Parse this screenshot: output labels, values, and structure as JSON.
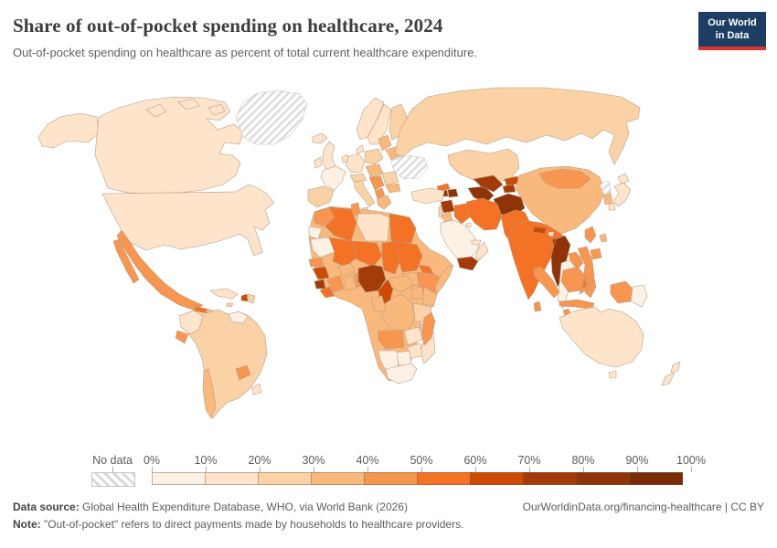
{
  "header": {
    "title": "Share of out-of-pocket spending on healthcare, 2024",
    "subtitle": "Out-of-pocket spending on healthcare as percent of total current healthcare expenditure.",
    "logo": {
      "line1": "Our World",
      "line2": "in Data",
      "bg_color": "#1d3d63",
      "accent_color": "#d9352f"
    }
  },
  "legend": {
    "no_data_label": "No data",
    "ticks": [
      "0%",
      "10%",
      "20%",
      "30%",
      "40%",
      "50%",
      "60%",
      "70%",
      "80%",
      "90%",
      "100%"
    ],
    "bins": [
      {
        "range": "0-10%",
        "color": "#fdf1e5"
      },
      {
        "range": "10-20%",
        "color": "#fde4cb"
      },
      {
        "range": "20-30%",
        "color": "#fbd2a6"
      },
      {
        "range": "30-40%",
        "color": "#f9b97d"
      },
      {
        "range": "40-50%",
        "color": "#f79650"
      },
      {
        "range": "50-60%",
        "color": "#f37226"
      },
      {
        "range": "60-70%",
        "color": "#cc4a04"
      },
      {
        "range": "70-80%",
        "color": "#a33b0b"
      },
      {
        "range": "80-90%",
        "color": "#8f3309"
      },
      {
        "range": "90-100%",
        "color": "#7a2a06"
      }
    ]
  },
  "footer": {
    "data_source_label": "Data source:",
    "data_source_text": " Global Health Expenditure Database, WHO, via World Bank (2026)",
    "attribution": "OurWorldinData.org/financing-healthcare | CC BY",
    "note_label": "Note:",
    "note_text": " \"Out-of-pocket\" refers to direct payments made by households to healthcare providers."
  },
  "chart_data": {
    "type": "choropleth_map",
    "title": "Share of out-of-pocket spending on healthcare, 2024",
    "unit": "% of total current healthcare expenditure",
    "year": 2024,
    "legend_bins": [
      "0-10%",
      "10-20%",
      "20-30%",
      "30-40%",
      "40-50%",
      "50-60%",
      "60-70%",
      "70-80%",
      "80-90%",
      "90-100%"
    ],
    "no_data_regions": [
      "Greenland",
      "Ukraine",
      "North Korea"
    ],
    "regions_estimated_from_shade": [
      {
        "name": "United States",
        "value": "10-20%"
      },
      {
        "name": "Canada",
        "value": "10-20%"
      },
      {
        "name": "Mexico",
        "value": "40-50%"
      },
      {
        "name": "Guatemala",
        "value": "50-60%"
      },
      {
        "name": "Cuba",
        "value": "10-20%"
      },
      {
        "name": "Haiti",
        "value": "60-70%"
      },
      {
        "name": "Colombia",
        "value": "10-20%"
      },
      {
        "name": "Venezuela",
        "value": "20-30%"
      },
      {
        "name": "Ecuador",
        "value": "40-50%"
      },
      {
        "name": "Brazil",
        "value": "20-30%"
      },
      {
        "name": "Peru",
        "value": "20-30%"
      },
      {
        "name": "Paraguay",
        "value": "40-50%"
      },
      {
        "name": "Chile",
        "value": "30-40%"
      },
      {
        "name": "Argentina",
        "value": "20-30%"
      },
      {
        "name": "United Kingdom",
        "value": "10-20%"
      },
      {
        "name": "France",
        "value": "0-10%"
      },
      {
        "name": "Germany",
        "value": "10-20%"
      },
      {
        "name": "Spain",
        "value": "20-30%"
      },
      {
        "name": "Italy",
        "value": "20-30%"
      },
      {
        "name": "Sweden",
        "value": "10-20%"
      },
      {
        "name": "Poland",
        "value": "20-30%"
      },
      {
        "name": "Russia",
        "value": "20-30%"
      },
      {
        "name": "Turkey",
        "value": "10-20%"
      },
      {
        "name": "Morocco",
        "value": "40-50%"
      },
      {
        "name": "Algeria",
        "value": "50-60%"
      },
      {
        "name": "Libya",
        "value": "10-20%"
      },
      {
        "name": "Egypt",
        "value": "50-60%"
      },
      {
        "name": "Mali",
        "value": "50-60%"
      },
      {
        "name": "Niger",
        "value": "50-60%"
      },
      {
        "name": "Chad",
        "value": "50-60%"
      },
      {
        "name": "Sudan",
        "value": "50-60%"
      },
      {
        "name": "Nigeria",
        "value": "70-80%"
      },
      {
        "name": "Sierra Leone",
        "value": "70-80%"
      },
      {
        "name": "Cameroon",
        "value": "60-70%"
      },
      {
        "name": "Ethiopia",
        "value": "40-50%"
      },
      {
        "name": "Kenya",
        "value": "30-40%"
      },
      {
        "name": "DR Congo",
        "value": "30-40%"
      },
      {
        "name": "Angola",
        "value": "40-50%"
      },
      {
        "name": "South Africa",
        "value": "0-10%"
      },
      {
        "name": "Botswana",
        "value": "0-10%"
      },
      {
        "name": "Madagascar",
        "value": "40-50%"
      },
      {
        "name": "Saudi Arabia",
        "value": "0-10%"
      },
      {
        "name": "Yemen",
        "value": "70-80%"
      },
      {
        "name": "Syria",
        "value": "70-80%"
      },
      {
        "name": "Iraq",
        "value": "50-60%"
      },
      {
        "name": "Iran",
        "value": "50-60%"
      },
      {
        "name": "Armenia",
        "value": "80-90%"
      },
      {
        "name": "Azerbaijan",
        "value": "80-90%"
      },
      {
        "name": "Kazakhstan",
        "value": "20-30%"
      },
      {
        "name": "Turkmenistan",
        "value": "80-90%"
      },
      {
        "name": "Uzbekistan",
        "value": "70-80%"
      },
      {
        "name": "Afghanistan",
        "value": "80-90%"
      },
      {
        "name": "Pakistan",
        "value": "50-60%"
      },
      {
        "name": "India",
        "value": "50-60%"
      },
      {
        "name": "Nepal",
        "value": "60-70%"
      },
      {
        "name": "Bangladesh",
        "value": "70-80%"
      },
      {
        "name": "Myanmar",
        "value": "80-90%"
      },
      {
        "name": "Thailand",
        "value": "0-10%"
      },
      {
        "name": "Vietnam",
        "value": "40-50%"
      },
      {
        "name": "Cambodia",
        "value": "50-60%"
      },
      {
        "name": "China",
        "value": "30-40%"
      },
      {
        "name": "Mongolia",
        "value": "40-50%"
      },
      {
        "name": "South Korea",
        "value": "30-40%"
      },
      {
        "name": "Japan",
        "value": "10-20%"
      },
      {
        "name": "Philippines",
        "value": "40-50%"
      },
      {
        "name": "Indonesia",
        "value": "40-50%"
      },
      {
        "name": "Papua New Guinea",
        "value": "0-10%"
      },
      {
        "name": "Australia",
        "value": "10-20%"
      },
      {
        "name": "New Zealand",
        "value": "10-20%"
      }
    ]
  }
}
